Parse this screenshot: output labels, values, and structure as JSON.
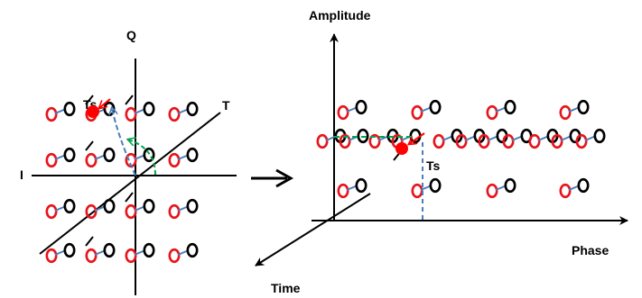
{
  "labels": {
    "left_i": "I",
    "left_q": "Q",
    "left_t": "T",
    "left_ts": "Ts",
    "right_amplitude": "Amplitude",
    "right_phase": "Phase",
    "right_time": "Time",
    "right_ts": "Ts"
  },
  "colors": {
    "axis": "#000000",
    "red_symbol": "#e8141b",
    "black_symbol": "#000000",
    "blue_link": "#4a7ebb",
    "green_angle": "#00a651",
    "red_point": "#ff0000"
  },
  "icons": {
    "transform_arrow": "right-arrow-icon"
  }
}
